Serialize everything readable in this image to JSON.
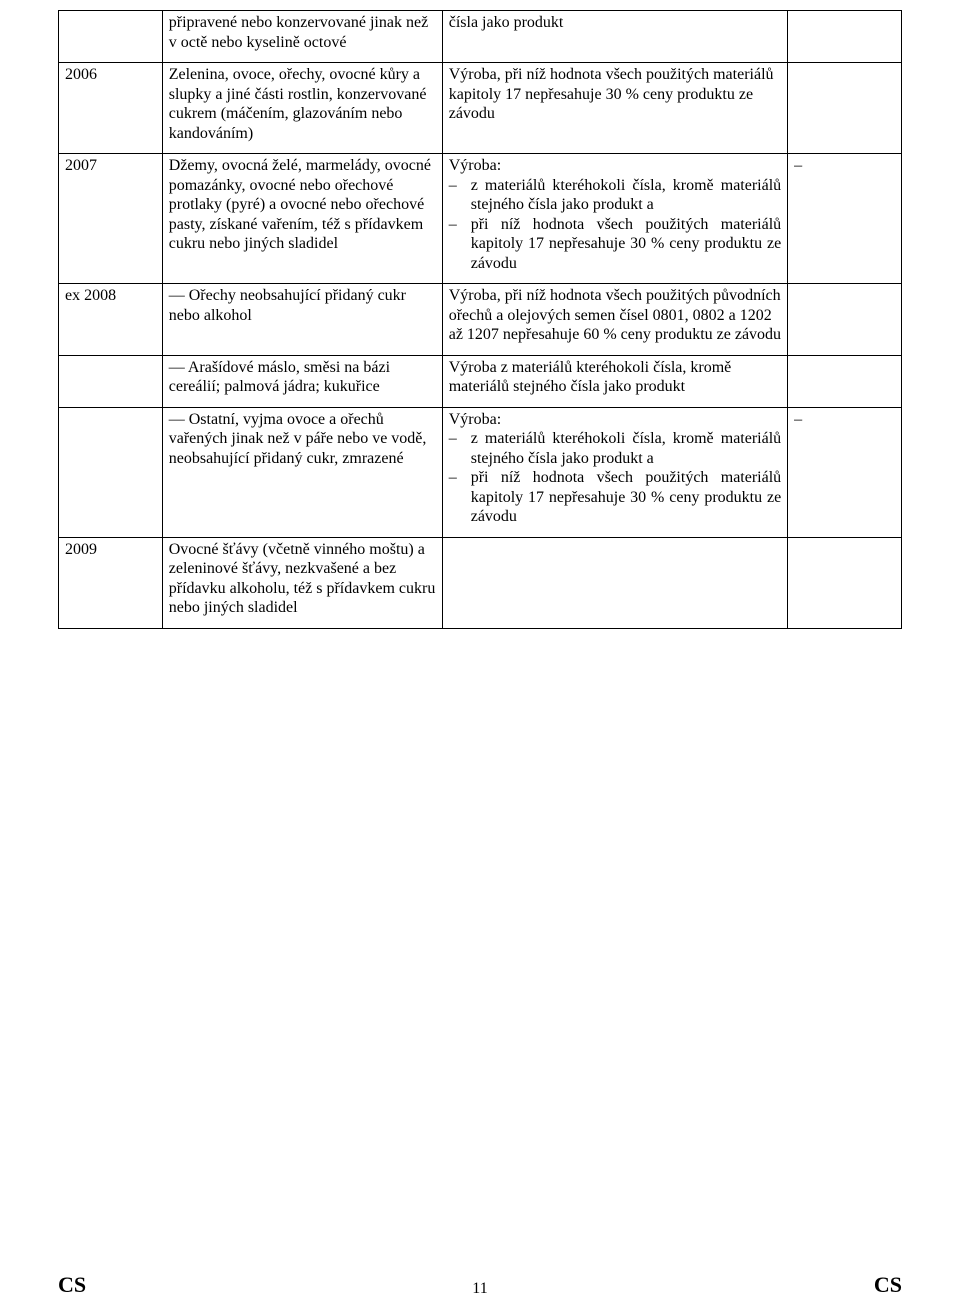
{
  "rows": [
    {
      "col1": "",
      "col2": "připravené nebo konzervované jinak než v octě nebo kyselině octové",
      "col3_plain": "čísla jako produkt",
      "col4": ""
    },
    {
      "col1": "2006",
      "col2": "Zelenina, ovoce, ořechy, ovocné kůry a slupky a jiné části rostlin, konzervované cukrem (máčením, glazováním nebo kandováním)",
      "col3_plain": "Výroba, při níž hodnota všech použitých materiálů kapitoly 17 nepřesahuje 30 % ceny produktu ze závodu",
      "col4": ""
    },
    {
      "col1": "2007",
      "col2": "Džemy, ovocná želé, marmelády, ovocné pomazánky, ovocné nebo ořechové protlaky (pyré) a ovocné nebo ořechové pasty, získané vařením, též s přídavkem cukru nebo jiných sladidel",
      "col3_lead": "Výroba:",
      "col3_bullets": [
        "z materiálů kteréhokoli čísla, kromě materiálů stejného čísla jako produkt a",
        "při níž hodnota všech použitých materiálů kapitoly 17 nepřesahuje 30 % ceny produktu ze závodu"
      ],
      "col4": "–"
    },
    {
      "col1": "ex 2008",
      "col2": "— Ořechy neobsahující přidaný cukr nebo alkohol",
      "col3_plain": "Výroba, při níž hodnota všech použitých původních ořechů a olejových semen čísel 0801, 0802 a 1202 až 1207 nepřesahuje 60 % ceny produktu ze závodu",
      "col4": ""
    },
    {
      "col1": "",
      "col2": "— Arašídové máslo, směsi na bázi cereálií; palmová jádra; kukuřice",
      "col3_plain": "Výroba z materiálů kteréhokoli čísla, kromě materiálů stejného čísla jako produkt",
      "col4": ""
    },
    {
      "col1": "",
      "col2": "— Ostatní, vyjma ovoce a ořechů vařených jinak než v páře nebo ve vodě, neobsahující přidaný cukr, zmrazené",
      "col3_lead": "Výroba:",
      "col3_bullets": [
        "z materiálů kteréhokoli čísla, kromě materiálů stejného čísla jako produkt a",
        "při níž hodnota všech použitých materiálů kapitoly 17 nepřesahuje 30 % ceny produktu ze závodu"
      ],
      "col4": "–"
    },
    {
      "col1": "2009",
      "col2": "Ovocné šťávy (včetně vinného moštu) a zeleninové šťávy, nezkvašené a bez přídavku alkoholu, též s přídavkem cukru nebo jiných sladidel",
      "col3_plain": "",
      "col4": ""
    }
  ],
  "footer": {
    "left": "CS",
    "page": "11",
    "right": "CS"
  }
}
